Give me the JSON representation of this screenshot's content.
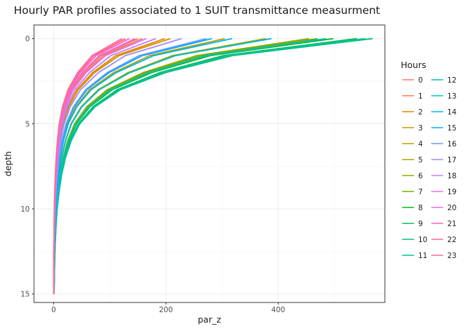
{
  "chart_data": {
    "type": "line",
    "title": "Hourly PAR profiles associated to 1 SUIT transmittance measurment",
    "xlabel": "par_z",
    "ylabel": "depth",
    "xlim": [
      -35,
      590
    ],
    "ylim": [
      15.5,
      -0.8
    ],
    "y_reversed": true,
    "x_ticks": [
      0,
      200,
      400
    ],
    "y_ticks": [
      0,
      5,
      10,
      15
    ],
    "grid": true,
    "legend": {
      "title": "Hours",
      "placement": "right",
      "columns": 2
    },
    "depths": [
      0,
      1,
      2,
      3,
      4,
      5,
      6,
      7,
      8,
      9,
      10,
      11,
      12,
      13,
      14,
      15
    ],
    "attenuation_profile": [
      1,
      0.56,
      0.35,
      0.21,
      0.13,
      0.082,
      0.055,
      0.037,
      0.025,
      0.017,
      0.011,
      0.0075,
      0.005,
      0.0033,
      0.0022,
      0.0015
    ],
    "series": [
      {
        "name": "0",
        "color": "#F8766D",
        "surface": 150
      },
      {
        "name": "1",
        "color": "#EF7F49",
        "surface": 158
      },
      {
        "name": "2",
        "color": "#E38900",
        "surface": 198
      },
      {
        "name": "3",
        "color": "#D49200",
        "surface": 208
      },
      {
        "name": "4",
        "color": "#C09B00",
        "surface": 305
      },
      {
        "name": "5",
        "color": "#A9A400",
        "surface": 378
      },
      {
        "name": "6",
        "color": "#8FAA00",
        "surface": 455
      },
      {
        "name": "7",
        "color": "#6BB100",
        "surface": 470
      },
      {
        "name": "8",
        "color": "#00B81F",
        "surface": 498
      },
      {
        "name": "9",
        "color": "#00BC59",
        "surface": 540
      },
      {
        "name": "10",
        "color": "#00BF7D",
        "surface": 568
      },
      {
        "name": "11",
        "color": "#00C19C",
        "surface": 555
      },
      {
        "name": "12",
        "color": "#00C0B8",
        "surface": 485
      },
      {
        "name": "13",
        "color": "#00BDD0",
        "surface": 388
      },
      {
        "name": "14",
        "color": "#00B7E8",
        "surface": 318
      },
      {
        "name": "15",
        "color": "#00ADFA",
        "surface": 282
      },
      {
        "name": "16",
        "color": "#619CFF",
        "surface": 272
      },
      {
        "name": "17",
        "color": "#A58AFF",
        "surface": 228
      },
      {
        "name": "18",
        "color": "#C77CFF",
        "surface": 182
      },
      {
        "name": "19",
        "color": "#E36EF6",
        "surface": 165
      },
      {
        "name": "20",
        "color": "#F564E3",
        "surface": 145
      },
      {
        "name": "21",
        "color": "#FF62BC",
        "surface": 135
      },
      {
        "name": "22",
        "color": "#FF6B96",
        "surface": 128
      },
      {
        "name": "23",
        "color": "#FF6C91",
        "surface": 122
      }
    ]
  }
}
